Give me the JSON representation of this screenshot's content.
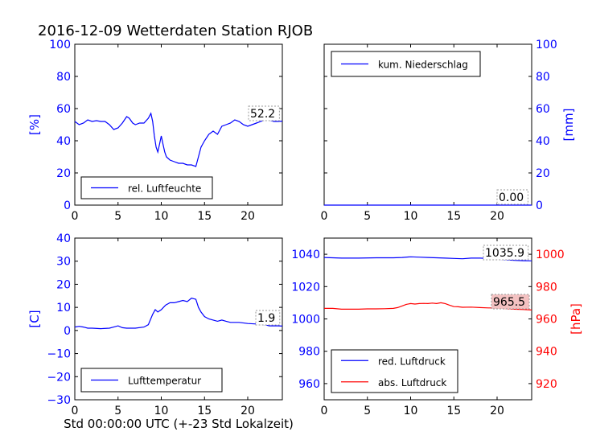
{
  "figure": {
    "title": "2016-12-09 Wetterdaten Station RJOB",
    "xlabel": "Std 00:00:00 UTC (+-23 Std Lokalzeit)"
  },
  "colors": {
    "blue": "#0000ff",
    "red": "#ff0000",
    "black": "#000000",
    "red_box": "#f4c2c2"
  },
  "chart_data": [
    {
      "type": "line",
      "ylabel": "[%]",
      "ylabel_color": "blue",
      "xlim": [
        0,
        24
      ],
      "ylim": [
        0,
        100
      ],
      "xticks": [
        0,
        5,
        10,
        15,
        20
      ],
      "yticks": [
        0,
        20,
        40,
        60,
        80,
        100
      ],
      "ytick_color": "blue",
      "legend_location": "lower-left",
      "series": [
        {
          "name": "rel. Luftfeuchte",
          "color": "blue",
          "x": [
            0,
            0.5,
            1,
            1.5,
            2,
            2.5,
            3,
            3.5,
            4,
            4.5,
            5,
            5.5,
            6,
            6.3,
            6.7,
            7,
            7.5,
            8,
            8.5,
            8.8,
            9,
            9.2,
            9.4,
            9.6,
            9.8,
            10,
            10.2,
            10.4,
            10.6,
            11,
            11.5,
            12,
            12.5,
            13,
            13.5,
            14,
            14.3,
            14.6,
            15,
            15.5,
            16,
            16.5,
            17,
            17.5,
            18,
            18.5,
            19,
            19.5,
            20,
            20.5,
            21,
            21.5,
            22,
            22.5,
            23,
            23.5,
            24
          ],
          "y": [
            52,
            50,
            51,
            53,
            52,
            52.5,
            52,
            52,
            50,
            47,
            48,
            51,
            55,
            54,
            51,
            50,
            51,
            51,
            54,
            57,
            52,
            43,
            36,
            33,
            38,
            43,
            38,
            33,
            30,
            28,
            27,
            26,
            26,
            25,
            25,
            24,
            30,
            36,
            40,
            44,
            46,
            44,
            49,
            50,
            51,
            53,
            52,
            50,
            49,
            50,
            51,
            52,
            53,
            53,
            52,
            52,
            52.2
          ]
        }
      ],
      "last_value_label": "52.2"
    },
    {
      "type": "line",
      "ylabel": "[mm]",
      "ylabel_color": "blue",
      "ylabel_side": "right",
      "xlim": [
        0,
        24
      ],
      "ylim": [
        0,
        100
      ],
      "xticks": [
        0,
        5,
        10,
        15,
        20
      ],
      "yticks": [
        0,
        20,
        40,
        60,
        80,
        100
      ],
      "ytick_color": "blue",
      "legend_location": "upper-left",
      "series": [
        {
          "name": "kum. Niederschlag",
          "color": "blue",
          "x": [
            0,
            24
          ],
          "y": [
            0,
            0
          ]
        }
      ],
      "last_value_label": "0.00"
    },
    {
      "type": "line",
      "ylabel": "[C]",
      "ylabel_color": "blue",
      "xlim": [
        0,
        24
      ],
      "ylim": [
        -30,
        40
      ],
      "xticks": [
        0,
        5,
        10,
        15,
        20
      ],
      "yticks": [
        -30,
        -20,
        -10,
        0,
        10,
        20,
        30,
        40
      ],
      "ytick_color": "blue",
      "legend_location": "lower-left",
      "series": [
        {
          "name": "Lufttemperatur",
          "color": "blue",
          "x": [
            0,
            0.5,
            1,
            1.5,
            2,
            3,
            4,
            4.5,
            5,
            5.5,
            6,
            7,
            8,
            8.5,
            9,
            9.3,
            9.6,
            10,
            10.5,
            11,
            11.5,
            12,
            12.5,
            13,
            13.5,
            14,
            14.3,
            14.6,
            15,
            15.5,
            16,
            16.5,
            17,
            17.5,
            18,
            19,
            20,
            21,
            22,
            22.5,
            23,
            23.5,
            24
          ],
          "y": [
            1.5,
            1.8,
            1.5,
            1.0,
            1.0,
            0.8,
            1.0,
            1.5,
            2.0,
            1.2,
            1.0,
            1.0,
            1.5,
            2.5,
            7,
            9,
            8,
            9,
            11,
            12,
            12,
            12.5,
            13,
            12.5,
            14,
            13.5,
            10,
            8,
            6,
            5,
            4.5,
            4,
            4.5,
            4,
            3.5,
            3.5,
            3,
            2.8,
            2.5,
            2,
            2,
            2,
            1.9
          ]
        }
      ],
      "last_value_label": "1.9"
    },
    {
      "type": "line",
      "ylabel": "[hPa]",
      "ylabel_color": "red",
      "ylabel_side": "right",
      "xlim": [
        0,
        24
      ],
      "ylim_left": [
        950,
        1050
      ],
      "ylim_right": [
        910,
        1010
      ],
      "xticks": [
        0,
        5,
        10,
        15,
        20
      ],
      "yticks_left": [
        960,
        980,
        1000,
        1020,
        1040
      ],
      "yticks_right": [
        920,
        940,
        960,
        980,
        1000
      ],
      "ytick_left_color": "blue",
      "ytick_right_color": "red",
      "legend_location": "lower-left",
      "series": [
        {
          "name": "red. Luftdruck",
          "color": "blue",
          "axis": "left",
          "x": [
            0,
            2,
            4,
            6,
            8,
            9,
            10,
            11,
            12,
            13,
            14,
            15,
            16,
            17,
            18,
            19,
            20,
            21,
            22,
            23,
            24
          ],
          "y": [
            1038,
            1037.6,
            1037.6,
            1037.8,
            1037.8,
            1038,
            1038.4,
            1038.2,
            1038,
            1037.8,
            1037.6,
            1037.4,
            1037.2,
            1037.6,
            1037.6,
            1037.4,
            1037,
            1036.6,
            1036.2,
            1036,
            1035.9
          ]
        },
        {
          "name": "abs. Luftdruck",
          "color": "red",
          "axis": "right",
          "x": [
            0,
            1,
            2,
            3,
            4,
            5,
            6,
            7,
            8,
            8.5,
            9,
            9.5,
            10,
            10.5,
            11,
            11.5,
            12,
            12.5,
            13,
            13.5,
            14,
            14.5,
            15,
            15.5,
            16,
            17,
            18,
            19,
            20,
            21,
            22,
            23,
            24
          ],
          "y": [
            966.5,
            966.5,
            966,
            966,
            966,
            966.2,
            966.2,
            966.3,
            966.5,
            967,
            968,
            969,
            969.5,
            969.2,
            969.5,
            969.6,
            969.5,
            969.8,
            969.5,
            970,
            969.5,
            968.5,
            967.6,
            967.5,
            967.2,
            967.3,
            967,
            966.8,
            966.8,
            966.4,
            966,
            965.8,
            965.5
          ]
        }
      ],
      "last_value_labels": [
        "1035.9",
        "965.5"
      ]
    }
  ]
}
